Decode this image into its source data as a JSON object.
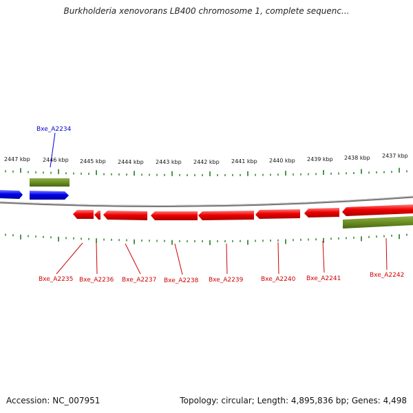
{
  "title": "Burkholderia xenovorans LB400 chromosome 1, complete sequenc...",
  "footer": {
    "accession": "Accession: NC_007951",
    "summary": "Topology: circular; Length: 4,895,836 bp; Genes: 4,498"
  },
  "colors": {
    "forward_gene": "#0000ee",
    "reverse_gene": "#ee0000",
    "feature_bar": "#6b8e23",
    "tick": "#1a7a1a",
    "backbone": "#8c8c8c"
  },
  "scale_labels": [
    "2447 kbp",
    "2446 kbp",
    "2445 kbp",
    "2444 kbp",
    "2443 kbp",
    "2442 kbp",
    "2441 kbp",
    "2440 kbp",
    "2439 kbp",
    "2438 kbp",
    "2437 kbp"
  ],
  "genes": [
    {
      "label": "Bxe_A2234",
      "strand": "forward"
    },
    {
      "label": "Bxe_A2235",
      "strand": "reverse"
    },
    {
      "label": "Bxe_A2236",
      "strand": "reverse"
    },
    {
      "label": "Bxe_A2237",
      "strand": "reverse"
    },
    {
      "label": "Bxe_A2238",
      "strand": "reverse"
    },
    {
      "label": "Bxe_A2239",
      "strand": "reverse"
    },
    {
      "label": "Bxe_A2240",
      "strand": "reverse"
    },
    {
      "label": "Bxe_A2241",
      "strand": "reverse"
    },
    {
      "label": "Bxe_A2242",
      "strand": "reverse"
    }
  ]
}
